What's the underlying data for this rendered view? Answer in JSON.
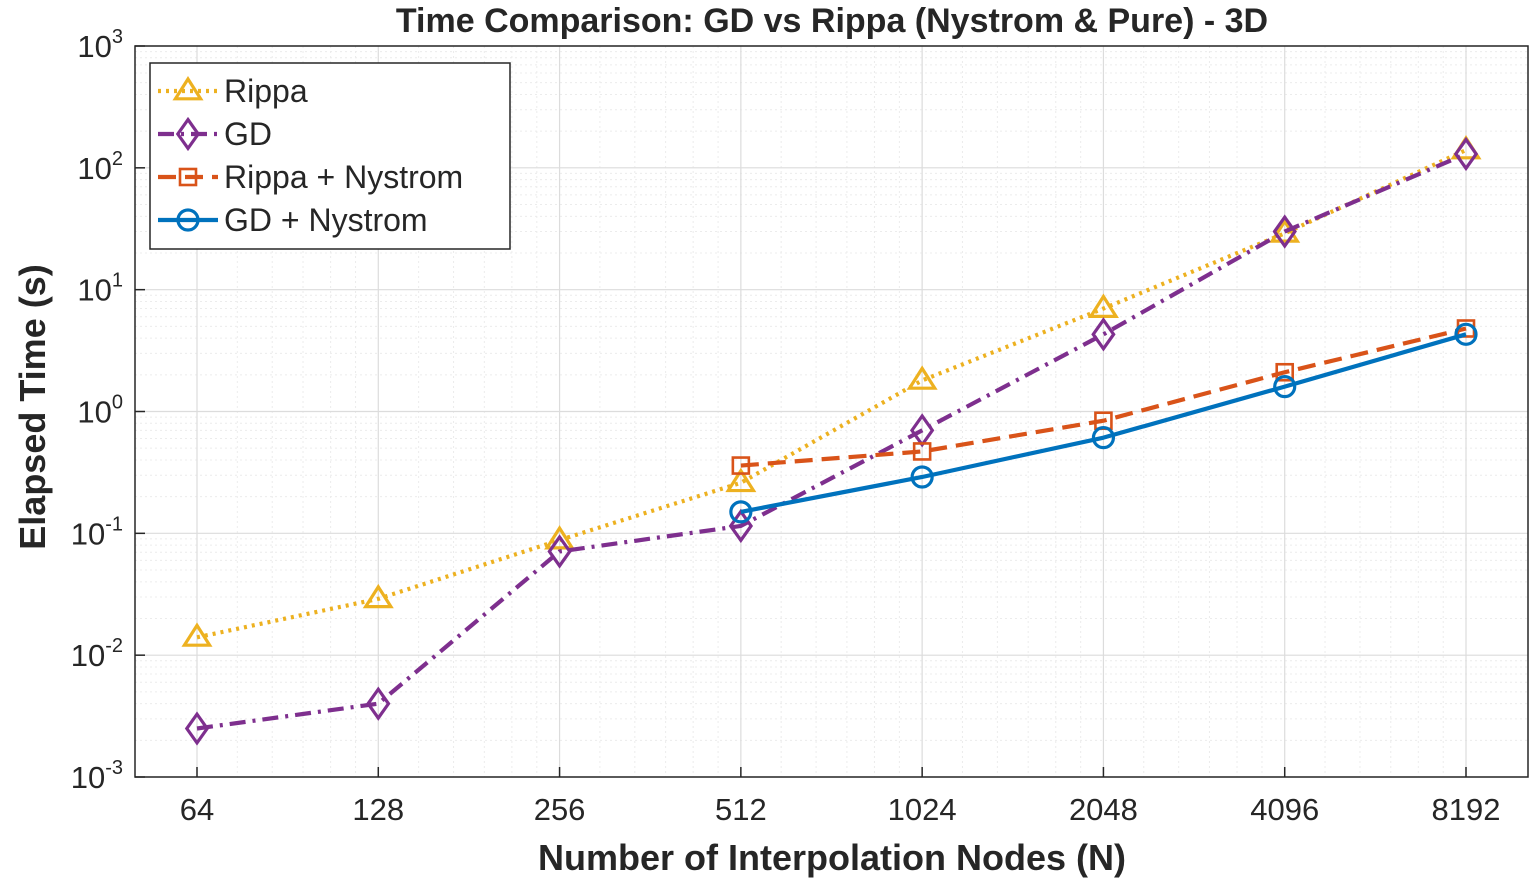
{
  "chart_data": {
    "type": "line",
    "title": "Time Comparison: GD vs Rippa (Nystrom & Pure) - 3D",
    "xlabel": "Number of Interpolation Nodes (N)",
    "ylabel": "Elapsed Time (s)",
    "xscale": "log2",
    "yscale": "log10",
    "x": [
      64,
      128,
      256,
      512,
      1024,
      2048,
      4096,
      8192
    ],
    "x_tick_labels": [
      "64",
      "128",
      "256",
      "512",
      "1024",
      "2048",
      "4096",
      "8192"
    ],
    "ylim": [
      0.001,
      1000
    ],
    "y_ticks": [
      {
        "value": 0.001,
        "base": "10",
        "exp": "-3"
      },
      {
        "value": 0.01,
        "base": "10",
        "exp": "-2"
      },
      {
        "value": 0.1,
        "base": "10",
        "exp": "-1"
      },
      {
        "value": 1,
        "base": "10",
        "exp": "0"
      },
      {
        "value": 10,
        "base": "10",
        "exp": "1"
      },
      {
        "value": 100,
        "base": "10",
        "exp": "2"
      },
      {
        "value": 1000,
        "base": "10",
        "exp": "3"
      }
    ],
    "grid": true,
    "minor_grid": true,
    "legend_position": "top-left",
    "series": [
      {
        "name": "Rippa",
        "color": "#EDB120",
        "dash": "dotted",
        "marker": "triangle",
        "x": [
          64,
          128,
          256,
          512,
          1024,
          2048,
          4096,
          8192
        ],
        "values": [
          0.014,
          0.029,
          0.088,
          0.26,
          1.8,
          7.0,
          29,
          140
        ]
      },
      {
        "name": "GD",
        "color": "#7E2F8E",
        "dash": "dashdot",
        "marker": "diamond",
        "x": [
          64,
          128,
          256,
          512,
          1024,
          2048,
          4096,
          8192
        ],
        "values": [
          0.0025,
          0.004,
          0.071,
          0.115,
          0.7,
          4.3,
          30,
          130
        ]
      },
      {
        "name": "Rippa + Nystrom",
        "color": "#D95319",
        "dash": "dashed",
        "marker": "square",
        "x": [
          512,
          1024,
          2048,
          4096,
          8192
        ],
        "values": [
          0.36,
          0.47,
          0.84,
          2.1,
          4.8
        ]
      },
      {
        "name": "GD + Nystrom",
        "color": "#0072BD",
        "dash": "solid",
        "marker": "circle",
        "x": [
          512,
          1024,
          2048,
          4096,
          8192
        ],
        "values": [
          0.15,
          0.29,
          0.61,
          1.6,
          4.3
        ]
      }
    ]
  }
}
